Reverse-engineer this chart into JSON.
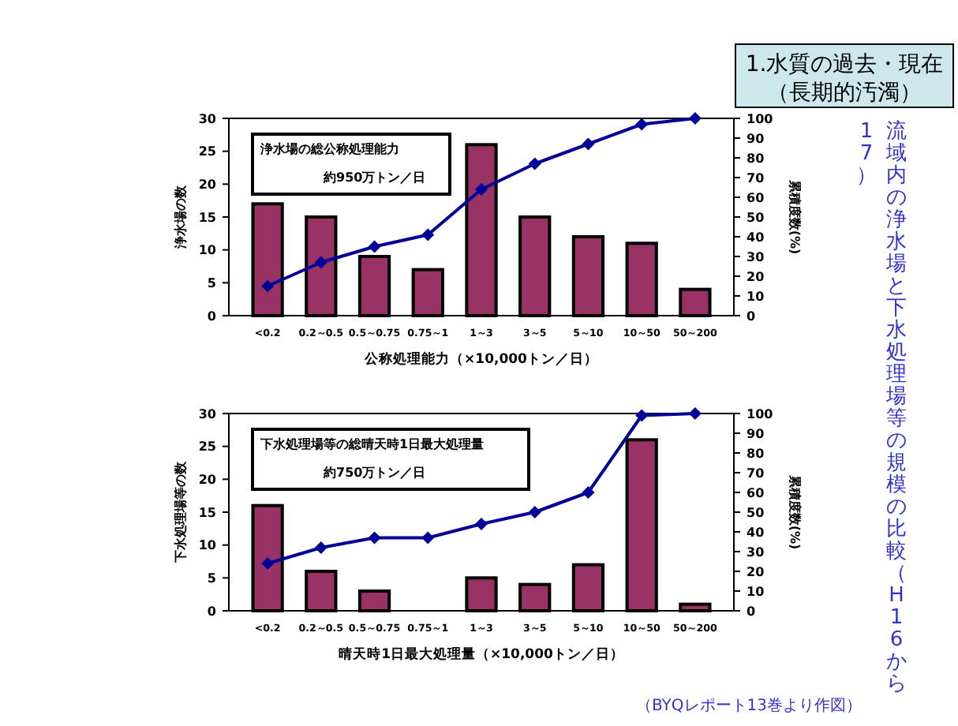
{
  "chart_data": [
    {
      "type": "bar",
      "xlabel": "公称処理能力（×10,000トン／日）",
      "ylabel": "浄水場の数",
      "y2label": "累積度数(%)",
      "categories": [
        "<0.2",
        "0.2～0.5",
        "0.5～0.75",
        "0.75～1",
        "1～3",
        "3～5",
        "5～10",
        "10～50",
        "50～200"
      ],
      "series": [
        {
          "color": "#993366",
          "values": [
            17,
            15,
            9,
            7,
            26,
            15,
            12,
            11,
            4
          ]
        },
        {
          "type": "line",
          "axis": "y2",
          "color": "#000099",
          "values": [
            15,
            27,
            35,
            41,
            64,
            77,
            87,
            97,
            100
          ]
        }
      ],
      "ylim": [
        0,
        30
      ],
      "yticks": [
        0,
        5,
        10,
        15,
        20,
        25,
        30
      ],
      "y2lim": [
        0,
        100
      ],
      "y2ticks": [
        0,
        10,
        20,
        30,
        40,
        50,
        60,
        70,
        80,
        90,
        100
      ],
      "marker": "diamond",
      "line_style": "solid",
      "legend": false,
      "annotations": [
        "浄水場の総公称処理能力",
        "約950万トン／日",
        "1.水質の過去・現在",
        "（長期的汚濁）",
        "流域内の浄水場と下水処理場等の規模の比較（H16から",
        "17）"
      ]
    },
    {
      "type": "bar",
      "xlabel": "晴天時1日最大処理量（×10,000トン／日）",
      "ylabel": "下水処理場等の数",
      "y2label": "累積度数(%)",
      "categories": [
        "<0.2",
        "0.2～0.5",
        "0.5～0.75",
        "0.75～1",
        "1～3",
        "3～5",
        "5～10",
        "10～50",
        "50～200"
      ],
      "series": [
        {
          "color": "#993366",
          "values": [
            16,
            6,
            3,
            0,
            5,
            4,
            7,
            26,
            1
          ]
        },
        {
          "type": "line",
          "axis": "y2",
          "color": "#000099",
          "values": [
            24,
            32,
            37,
            37,
            44,
            50,
            60,
            99,
            100
          ]
        }
      ],
      "ylim": [
        0,
        30
      ],
      "yticks": [
        0,
        5,
        10,
        15,
        20,
        25,
        30
      ],
      "y2lim": [
        0,
        100
      ],
      "y2ticks": [
        0,
        10,
        20,
        30,
        40,
        50,
        60,
        70,
        80,
        90,
        100
      ],
      "marker": "diamond",
      "line_style": "solid",
      "legend": false,
      "annotations": [
        "下水処理場等の総晴天時1日最大処理量",
        "約750万トン／日",
        "（BYQレポート13巻より作図）"
      ]
    }
  ]
}
